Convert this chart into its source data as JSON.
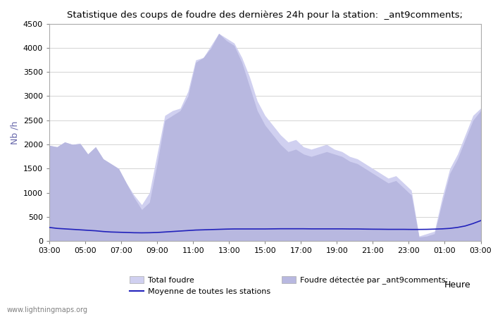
{
  "title": "Statistique des coups de foudre des dernières 24h pour la station:  _ant9comments;",
  "ylabel": "Nb /h",
  "xlabel": "Heure",
  "watermark": "www.lightningmaps.org",
  "tick_labels": [
    "03:00",
    "05:00",
    "07:00",
    "09:00",
    "11:00",
    "13:00",
    "15:00",
    "17:00",
    "19:00",
    "21:00",
    "23:00",
    "01:00",
    "03:00"
  ],
  "ylim": [
    0,
    4500
  ],
  "yticks": [
    0,
    500,
    1000,
    1500,
    2000,
    2500,
    3000,
    3500,
    4000,
    4500
  ],
  "background_color": "#ffffff",
  "plot_bg_color": "#ffffff",
  "total_foudre_color": "#d0d0f0",
  "detected_color": "#b8b8e0",
  "line_color": "#2222bb",
  "total_foudre": [
    1980,
    1950,
    2050,
    2000,
    2020,
    1800,
    1950,
    1700,
    1600,
    1500,
    1200,
    950,
    750,
    1000,
    1800,
    2600,
    2700,
    2750,
    3100,
    3750,
    3800,
    4050,
    4300,
    4200,
    4100,
    3800,
    3400,
    2900,
    2600,
    2400,
    2200,
    2050,
    2100,
    1950,
    1900,
    1950,
    2000,
    1900,
    1850,
    1750,
    1700,
    1600,
    1500,
    1400,
    1300,
    1350,
    1200,
    1050,
    100,
    150,
    200,
    900,
    1500,
    1800,
    2200,
    2600,
    2750
  ],
  "detected_foudre": [
    1980,
    1950,
    2050,
    2000,
    2020,
    1800,
    1950,
    1700,
    1600,
    1500,
    1200,
    900,
    650,
    800,
    1600,
    2500,
    2600,
    2700,
    3000,
    3700,
    3800,
    4000,
    4300,
    4150,
    4050,
    3700,
    3200,
    2700,
    2400,
    2200,
    2000,
    1850,
    1900,
    1800,
    1750,
    1800,
    1850,
    1800,
    1750,
    1650,
    1600,
    1500,
    1400,
    1300,
    1200,
    1250,
    1100,
    950,
    80,
    100,
    150,
    800,
    1400,
    1700,
    2100,
    2500,
    2700
  ],
  "mean_line": [
    280,
    260,
    250,
    240,
    230,
    220,
    210,
    195,
    185,
    180,
    175,
    170,
    168,
    170,
    175,
    185,
    195,
    205,
    215,
    225,
    230,
    235,
    240,
    245,
    248,
    248,
    248,
    248,
    248,
    250,
    252,
    252,
    252,
    252,
    250,
    250,
    250,
    250,
    250,
    248,
    248,
    245,
    243,
    242,
    240,
    240,
    240,
    238,
    238,
    240,
    245,
    250,
    260,
    280,
    310,
    360,
    420
  ],
  "legend_total": "Total foudre",
  "legend_mean": "Moyenne de toutes les stations",
  "legend_detected": "Foudre détectée par _ant9comments;"
}
